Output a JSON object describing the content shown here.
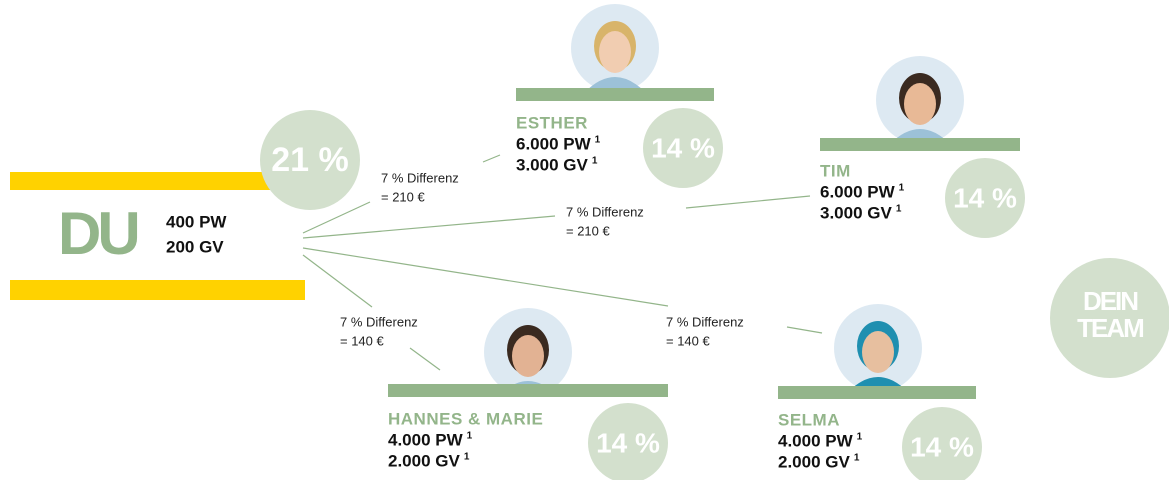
{
  "du": {
    "label": "DU",
    "pw": "400 PW",
    "gv": "200 GV",
    "percent": "21 %"
  },
  "members": [
    {
      "name": "ESTHER",
      "pw": "6.000 PW",
      "gv": "3.000 GV",
      "footnote": "1",
      "percent": "14 %"
    },
    {
      "name": "TIM",
      "pw": "6.000 PW",
      "gv": "3.000 GV",
      "footnote": "1",
      "percent": "14 %"
    },
    {
      "name": "HANNES & MARIE",
      "pw": "4.000 PW",
      "gv": "2.000 GV",
      "footnote": "1",
      "percent": "14 %"
    },
    {
      "name": "SELMA",
      "pw": "4.000 PW",
      "gv": "2.000 GV",
      "footnote": "1",
      "percent": "14 %"
    }
  ],
  "connectors": [
    {
      "text": "7 % Differenz",
      "amount": "= 210 €"
    },
    {
      "text": "7 % Differenz",
      "amount": "= 210 €"
    },
    {
      "text": "7 % Differenz",
      "amount": "= 140 €"
    },
    {
      "text": "7 % Differenz",
      "amount": "= 140 €"
    }
  ],
  "badge": {
    "line1": "DEIN",
    "line2": "TEAM"
  }
}
